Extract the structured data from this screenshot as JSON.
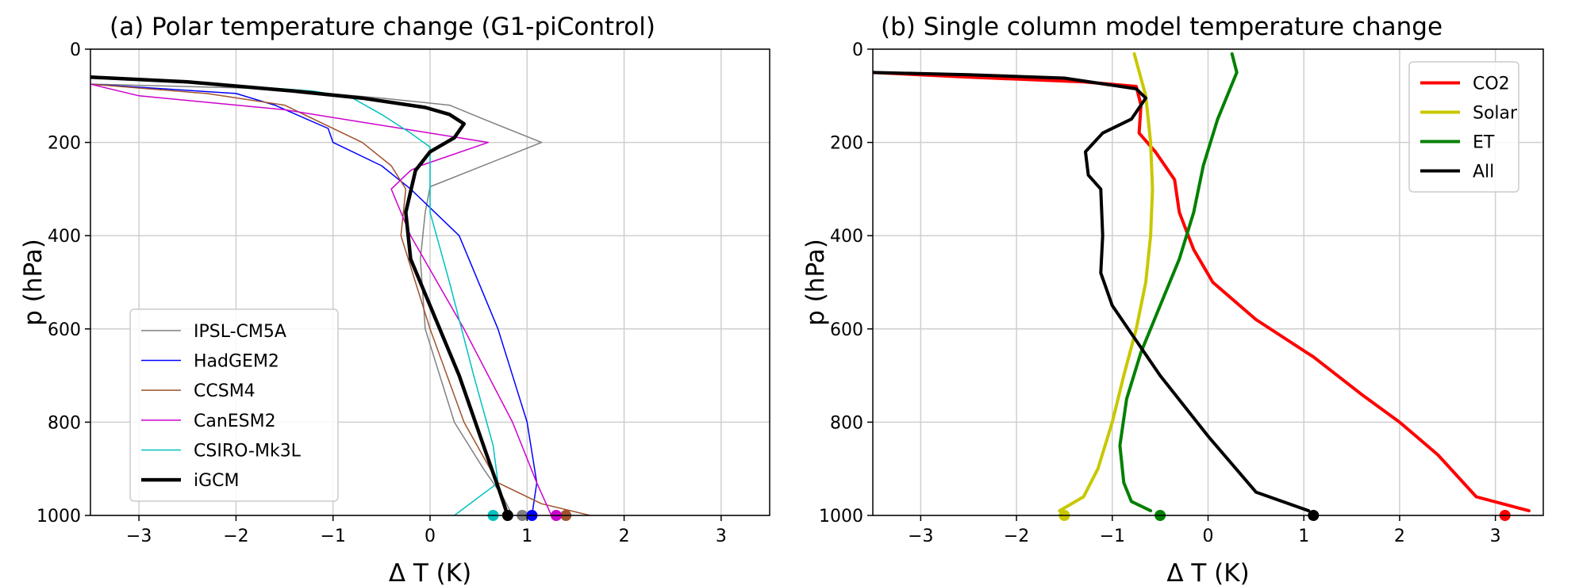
{
  "chart_data": [
    {
      "type": "line",
      "title": "(a) Polar temperature change (G1-piControl)",
      "xlabel": "Δ T (K)",
      "ylabel": "p (hPa)",
      "xlim": [
        -3.5,
        3.5
      ],
      "ylim": [
        1000,
        0
      ],
      "xticks": [
        -3,
        -2,
        -1,
        0,
        1,
        2,
        3
      ],
      "yticks": [
        0,
        200,
        400,
        600,
        800,
        1000
      ],
      "grid": true,
      "legend": "lower-left",
      "series": [
        {
          "name": "IPSL-CM5A",
          "color": "#808080",
          "width": 1.5,
          "dot": 0.95,
          "x": [
            -3.5,
            -1.6,
            -0.5,
            0.2,
            0.55,
            1.15,
            0.0,
            -0.05,
            -0.1,
            -0.05,
            0.25,
            0.55,
            0.75,
            0.85
          ],
          "y": [
            75,
            85,
            105,
            120,
            150,
            200,
            295,
            350,
            450,
            600,
            800,
            900,
            960,
            1000
          ]
        },
        {
          "name": "HadGEM2",
          "color": "#0000ff",
          "width": 1.5,
          "dot": 1.05,
          "x": [
            -3.5,
            -2.0,
            -1.6,
            -1.05,
            -1.0,
            -0.5,
            -0.2,
            0.0,
            0.3,
            0.7,
            1.0,
            1.1,
            1.05
          ],
          "y": [
            75,
            95,
            120,
            170,
            200,
            250,
            300,
            340,
            400,
            600,
            800,
            930,
            1000
          ]
        },
        {
          "name": "CCSM4",
          "color": "#a0522d",
          "width": 1.5,
          "dot": 1.4,
          "x": [
            -3.5,
            -2.3,
            -1.5,
            -0.7,
            -0.4,
            -0.25,
            -0.3,
            0.0,
            0.35,
            0.7,
            1.15,
            1.65
          ],
          "y": [
            75,
            95,
            120,
            200,
            250,
            300,
            400,
            600,
            800,
            930,
            975,
            1000
          ]
        },
        {
          "name": "CanESM2",
          "color": "#cc00cc",
          "width": 1.5,
          "dot": 1.3,
          "x": [
            -3.5,
            -3.0,
            -1.5,
            0.6,
            -0.1,
            -0.2,
            -0.4,
            -0.2,
            0.35,
            0.85,
            1.1,
            1.25
          ],
          "y": [
            75,
            100,
            130,
            200,
            250,
            260,
            300,
            400,
            600,
            800,
            930,
            1000
          ]
        },
        {
          "name": "CSIRO-Mk3L",
          "color": "#00c0c0",
          "width": 1.5,
          "dot": 0.65,
          "x": [
            -3.5,
            -2.5,
            -1.2,
            -0.8,
            -0.5,
            -0.2,
            0.0,
            0.0,
            0.0,
            0.2,
            0.45,
            0.65,
            0.7,
            0.25
          ],
          "y": [
            60,
            70,
            90,
            105,
            140,
            180,
            210,
            250,
            350,
            500,
            700,
            850,
            930,
            1000
          ]
        },
        {
          "name": "iGCM",
          "color": "#000000",
          "width": 4.5,
          "dot": 0.8,
          "x": [
            -3.5,
            -2.5,
            -1.4,
            -0.7,
            -0.05,
            0.2,
            0.35,
            0.25,
            0.0,
            -0.15,
            -0.25,
            -0.2,
            0.0,
            0.3,
            0.55,
            0.72,
            0.8
          ],
          "y": [
            60,
            70,
            90,
            105,
            125,
            140,
            160,
            190,
            220,
            260,
            350,
            450,
            550,
            700,
            850,
            950,
            1000
          ]
        }
      ]
    },
    {
      "type": "line",
      "title": "(b) Single column model temperature change",
      "xlabel": "Δ T (K)",
      "ylabel": "p (hPa)",
      "xlim": [
        -3.5,
        3.5
      ],
      "ylim": [
        1000,
        0
      ],
      "xticks": [
        -3,
        -2,
        -1,
        0,
        1,
        2,
        3
      ],
      "yticks": [
        0,
        200,
        400,
        600,
        800,
        1000
      ],
      "grid": true,
      "legend": "top-right",
      "series": [
        {
          "name": "CO2",
          "color": "#ff0000",
          "width": 4,
          "dot": 3.1,
          "x": [
            -3.5,
            -2.5,
            -1.3,
            -0.75,
            -0.7,
            -0.72,
            -0.55,
            -0.35,
            -0.3,
            -0.15,
            0.05,
            0.5,
            1.1,
            1.6,
            2.0,
            2.4,
            2.8,
            3.35
          ],
          "y": [
            50,
            60,
            70,
            80,
            120,
            180,
            220,
            280,
            350,
            430,
            500,
            580,
            660,
            740,
            800,
            870,
            960,
            990
          ]
        },
        {
          "name": "Solar",
          "color": "#c8c800",
          "width": 4,
          "dot": -1.5,
          "x": [
            -0.77,
            -0.65,
            -0.6,
            -0.58,
            -0.6,
            -0.65,
            -0.75,
            -0.88,
            -1.0,
            -1.15,
            -1.3,
            -1.55
          ],
          "y": [
            10,
            100,
            200,
            300,
            400,
            500,
            600,
            700,
            800,
            900,
            960,
            990
          ]
        },
        {
          "name": "ET",
          "color": "#008000",
          "width": 4,
          "dot": -0.5,
          "x": [
            0.25,
            0.3,
            0.1,
            -0.05,
            -0.15,
            -0.3,
            -0.5,
            -0.7,
            -0.85,
            -0.92,
            -0.88,
            -0.8,
            -0.6
          ],
          "y": [
            10,
            50,
            150,
            250,
            350,
            450,
            550,
            650,
            750,
            850,
            930,
            970,
            990
          ]
        },
        {
          "name": "All",
          "color": "#000000",
          "width": 4,
          "dot": 1.1,
          "x": [
            -3.5,
            -2.5,
            -1.5,
            -0.75,
            -0.65,
            -0.8,
            -1.1,
            -1.28,
            -1.25,
            -1.12,
            -1.1,
            -1.12,
            -1.0,
            -0.5,
            0.0,
            0.5,
            1.05
          ],
          "y": [
            50,
            55,
            62,
            85,
            105,
            150,
            180,
            220,
            270,
            300,
            400,
            480,
            550,
            700,
            830,
            950,
            990
          ]
        }
      ]
    }
  ]
}
